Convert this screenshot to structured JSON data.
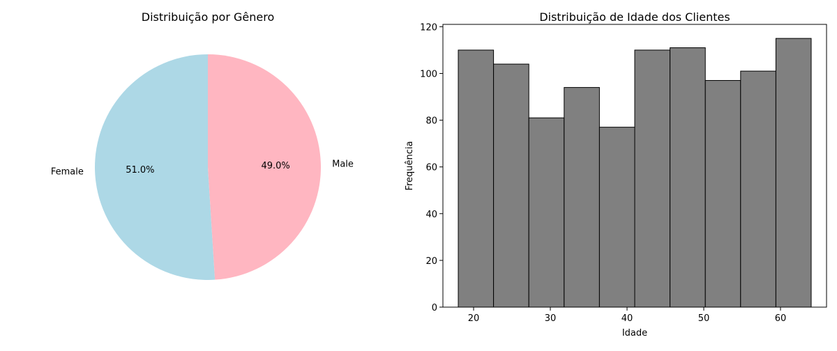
{
  "chart_data": [
    {
      "type": "pie",
      "title": "Distribuição por Gênero",
      "slices": [
        {
          "label": "Female",
          "value": 51.0,
          "pct_label": "51.0%",
          "color": "#add8e6"
        },
        {
          "label": "Male",
          "value": 49.0,
          "pct_label": "49.0%",
          "color": "#ffb6c1"
        }
      ],
      "start_angle_deg": 90,
      "direction": "counterclockwise"
    },
    {
      "type": "bar",
      "subtype": "histogram",
      "title": "Distribuição de Idade dos Clientes",
      "xlabel": "Idade",
      "ylabel": "Frequência",
      "bin_edges": [
        18,
        22.6,
        27.2,
        31.8,
        36.4,
        41,
        45.6,
        50.2,
        54.8,
        59.4,
        64
      ],
      "values": [
        110,
        104,
        81,
        94,
        77,
        110,
        111,
        97,
        101,
        115
      ],
      "xlim": [
        16,
        66
      ],
      "ylim": [
        0,
        121
      ],
      "xticks": [
        20,
        30,
        40,
        50,
        60
      ],
      "yticks": [
        0,
        20,
        40,
        60,
        80,
        100,
        120
      ],
      "bar_color": "#808080",
      "edge_color": "#000000",
      "grid": false,
      "legend": "none"
    }
  ]
}
